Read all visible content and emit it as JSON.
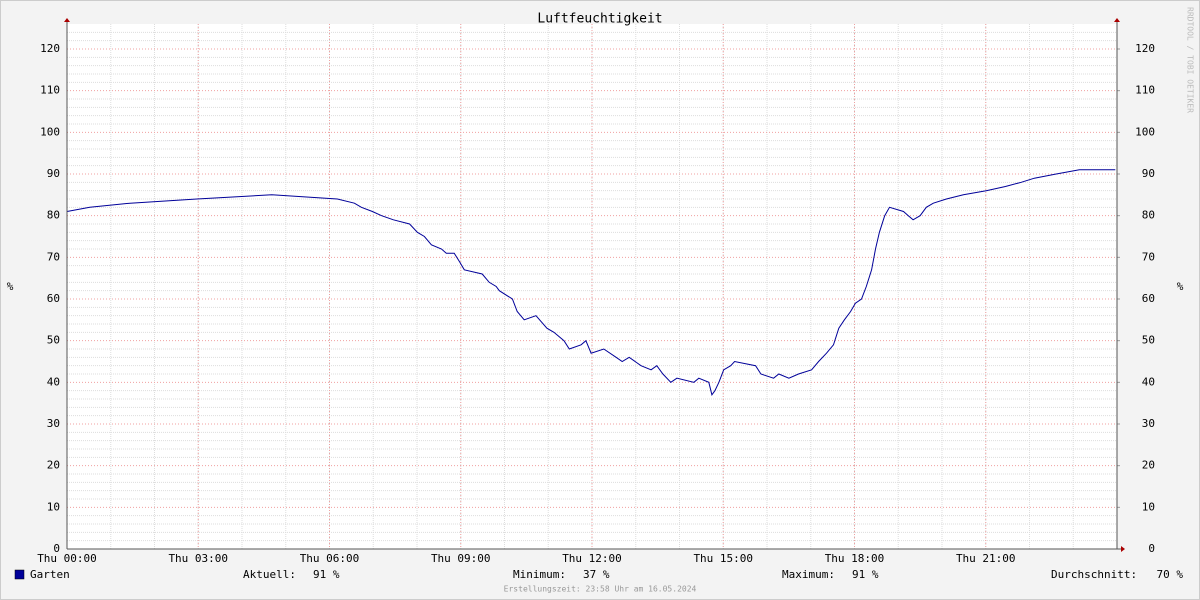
{
  "chart_data": {
    "type": "line",
    "title": "Luftfeuchtigkeit",
    "ylabel": "%",
    "y2label": "%",
    "side_text": "RRDTOOL / TOBI OETIKER",
    "footer": "Erstellungszeit: 23:58 Uhr am 16.05.2024",
    "xlim": [
      0,
      24
    ],
    "xticks": [
      {
        "value": 0,
        "label": "Thu 00:00"
      },
      {
        "value": 3,
        "label": "Thu 03:00"
      },
      {
        "value": 6,
        "label": "Thu 06:00"
      },
      {
        "value": 9,
        "label": "Thu 09:00"
      },
      {
        "value": 12,
        "label": "Thu 12:00"
      },
      {
        "value": 15,
        "label": "Thu 15:00"
      },
      {
        "value": 18,
        "label": "Thu 18:00"
      },
      {
        "value": 21,
        "label": "Thu 21:00"
      }
    ],
    "ylim": [
      0,
      126
    ],
    "yticks": [
      0,
      10,
      20,
      30,
      40,
      50,
      60,
      70,
      80,
      90,
      100,
      110,
      120
    ],
    "y2lim": [
      0,
      126
    ],
    "y2ticks": [
      0,
      10,
      20,
      30,
      40,
      50,
      60,
      70,
      80,
      90,
      100,
      110,
      120
    ],
    "grid": true,
    "x": [
      0,
      0.52,
      1.44,
      2.97,
      4.68,
      6.18,
      6.57,
      6.73,
      6.98,
      7.19,
      7.46,
      7.83,
      8.01,
      8.17,
      8.33,
      8.56,
      8.67,
      8.85,
      8.97,
      9.08,
      9.49,
      9.65,
      9.81,
      9.88,
      10.18,
      10.29,
      10.45,
      10.72,
      10.97,
      11.13,
      11.36,
      11.48,
      11.75,
      11.86,
      11.98,
      12.27,
      12.55,
      12.69,
      12.85,
      13.12,
      13.35,
      13.48,
      13.62,
      13.8,
      13.94,
      14.33,
      14.44,
      14.67,
      14.74,
      14.81,
      14.9,
      15.01,
      15.17,
      15.26,
      15.74,
      15.86,
      16.15,
      16.27,
      16.5,
      16.72,
      17.02,
      17.18,
      17.36,
      17.52,
      17.64,
      17.77,
      17.91,
      18.02,
      18.16,
      18.27,
      18.39,
      18.48,
      18.57,
      18.69,
      18.8,
      19.12,
      19.23,
      19.34,
      19.5,
      19.64,
      19.8,
      20.1,
      20.49,
      21.01,
      21.45,
      21.81,
      22.11,
      22.61,
      23.14,
      23.96
    ],
    "series": [
      {
        "name": "Garten",
        "color": "#000099",
        "values": [
          81,
          82,
          83,
          84,
          85,
          84,
          83,
          82,
          81,
          80,
          79,
          78,
          76,
          75,
          73,
          72,
          71,
          71,
          69,
          67,
          66,
          64,
          63,
          62,
          60,
          57,
          55,
          56,
          53,
          52,
          50,
          48,
          49,
          50,
          47,
          48,
          46,
          45,
          46,
          44,
          43,
          44,
          42,
          40,
          41,
          40,
          41,
          40,
          37,
          38,
          40,
          43,
          44,
          45,
          44,
          42,
          41,
          42,
          41,
          42,
          43,
          45,
          47,
          49,
          53,
          55,
          57,
          59,
          60,
          63,
          67,
          72,
          76,
          80,
          82,
          81,
          80,
          79,
          80,
          82,
          83,
          84,
          85,
          86,
          87,
          88,
          89,
          90,
          91,
          91
        ]
      }
    ],
    "stats": [
      {
        "label": "Aktuell:",
        "value": 91,
        "value_label": "91 %"
      },
      {
        "label": "Minimum:",
        "value": 37,
        "value_label": "37 %"
      },
      {
        "label": "Maximum:",
        "value": 91,
        "value_label": "91 %"
      },
      {
        "label": "Durchschnitt:",
        "value": 70,
        "value_label": "70 %"
      }
    ]
  }
}
